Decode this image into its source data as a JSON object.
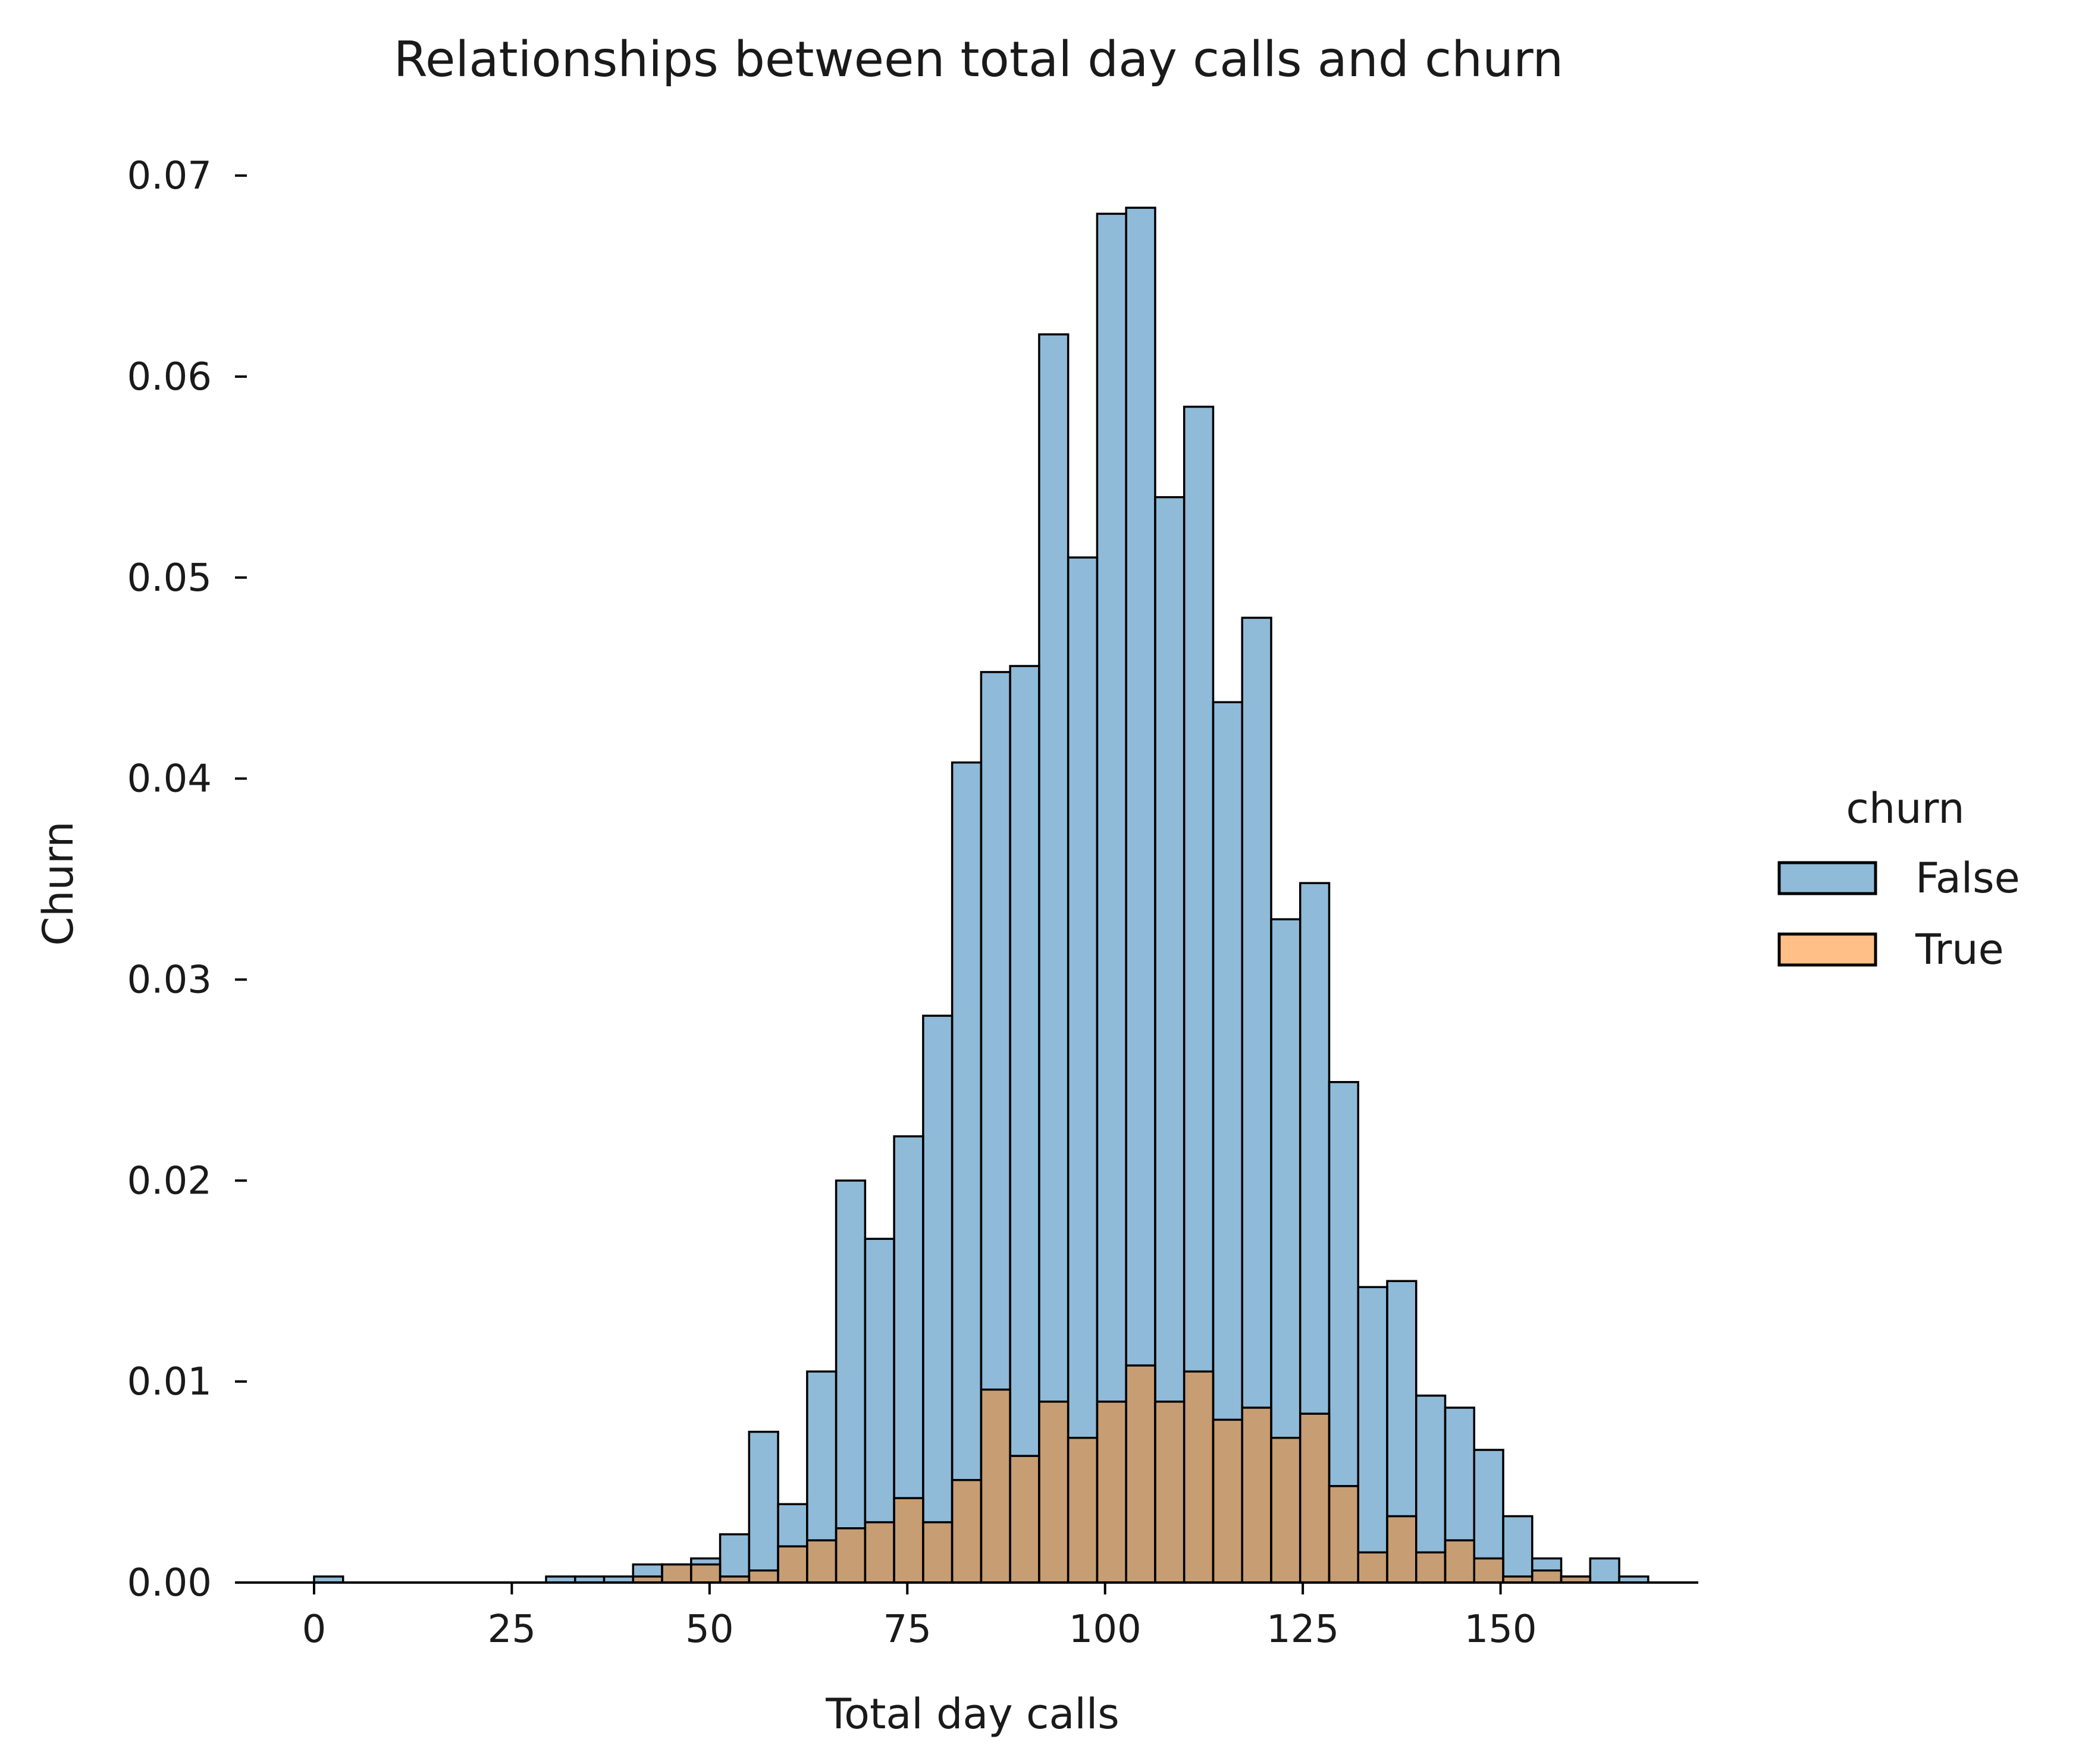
{
  "chart_data": {
    "type": "bar",
    "title": "Relationships between total day calls and churn",
    "xlabel": "Total day calls",
    "ylabel": "Churn",
    "xlim": [
      -10,
      175
    ],
    "ylim": [
      0,
      0.074
    ],
    "xticks": [
      0,
      25,
      50,
      75,
      100,
      125,
      150
    ],
    "yticks": [
      0.0,
      0.01,
      0.02,
      0.03,
      0.04,
      0.05,
      0.06,
      0.07
    ],
    "grid": false,
    "legend_title": "churn",
    "legend_placement": "right",
    "bin_start": 0,
    "bin_width": 3.6667,
    "series": [
      {
        "name": "False",
        "color": "#1f77b4",
        "opacity": 0.5,
        "values": [
          0.0003,
          0,
          0,
          0,
          0,
          0,
          0,
          0,
          0.0003,
          0.0003,
          0.0003,
          0.0009,
          0.0009,
          0.0012,
          0.0024,
          0.0075,
          0.0039,
          0.0105,
          0.02,
          0.0171,
          0.0222,
          0.0282,
          0.0408,
          0.0453,
          0.0456,
          0.0621,
          0.051,
          0.0681,
          0.0684,
          0.054,
          0.0585,
          0.0438,
          0.048,
          0.033,
          0.0348,
          0.0249,
          0.0147,
          0.015,
          0.0093,
          0.0087,
          0.0066,
          0.0033,
          0.0012,
          0.0003,
          0.0012,
          0.0003
        ]
      },
      {
        "name": "True",
        "color": "#ff7f0e",
        "opacity": 0.5,
        "values": [
          0,
          0,
          0,
          0,
          0,
          0,
          0,
          0,
          0,
          0,
          0,
          0.0003,
          0.0009,
          0.0009,
          0.0003,
          0.0006,
          0.0018,
          0.0021,
          0.0027,
          0.003,
          0.0042,
          0.003,
          0.0051,
          0.0096,
          0.0063,
          0.009,
          0.0072,
          0.009,
          0.0108,
          0.009,
          0.0105,
          0.0081,
          0.0087,
          0.0072,
          0.0084,
          0.0048,
          0.0015,
          0.0033,
          0.0015,
          0.0021,
          0.0012,
          0.0003,
          0.0006,
          0.0003,
          0,
          0
        ]
      }
    ]
  }
}
